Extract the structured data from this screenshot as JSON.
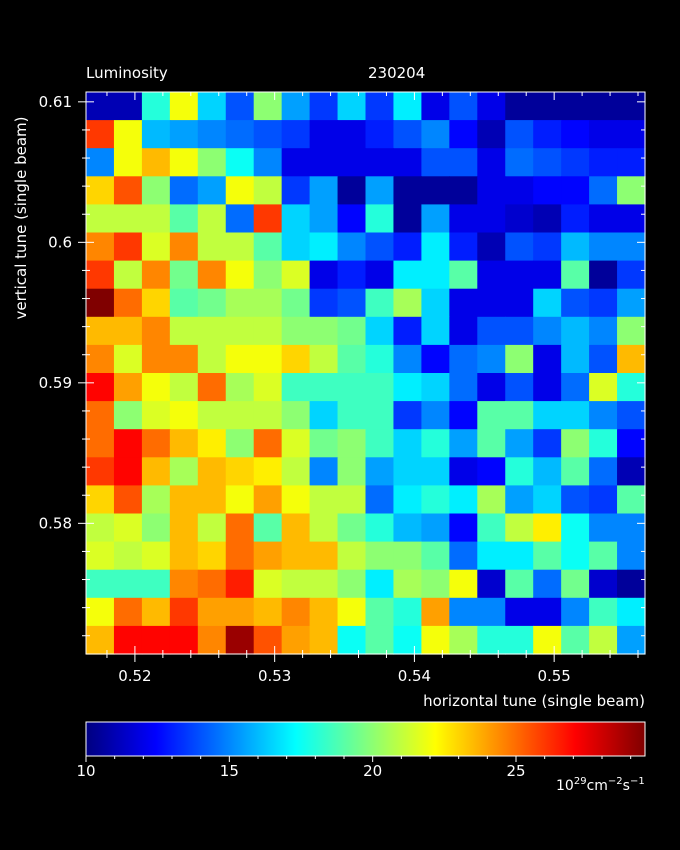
{
  "chart_data": {
    "type": "heatmap",
    "title": "Luminosity",
    "run_id": "230204",
    "xlabel": "horizontal tune (single beam)",
    "ylabel": "vertical tune (single beam)",
    "x_range": [
      0.5165,
      0.5565
    ],
    "y_range": [
      0.5707,
      0.6107
    ],
    "x_ticks": [
      0.52,
      0.53,
      0.54,
      0.55
    ],
    "x_tick_labels": [
      "0.52",
      "0.53",
      "0.54",
      "0.55"
    ],
    "y_ticks": [
      0.58,
      0.59,
      0.6,
      0.61
    ],
    "y_tick_labels": [
      "0.58",
      "0.59",
      "0.6",
      "0.61"
    ],
    "colorbar": {
      "min": 10,
      "max": 29.5,
      "ticks": [
        10,
        15,
        20,
        25
      ],
      "tick_labels": [
        "10",
        "15",
        "20",
        "25"
      ],
      "unit_base": "10",
      "unit_exp": "29",
      "unit_mid": "cm",
      "unit_exp2": "−2",
      "unit_mid2": "s",
      "unit_exp3": "−1"
    },
    "grid_size": [
      20,
      20
    ],
    "z_rows_top_to_bottom": [
      [
        11,
        11,
        18,
        22,
        16.5,
        14,
        20,
        15.5,
        13.5,
        16.5,
        13.5,
        17,
        12,
        14,
        12,
        10.5,
        10.5,
        10.5,
        10.5,
        10.5
      ],
      [
        26,
        22,
        16,
        15.5,
        15,
        14.5,
        14,
        13.5,
        12,
        12,
        13,
        14,
        15,
        12.5,
        11,
        14,
        13,
        12.5,
        12,
        12
      ],
      [
        15,
        22,
        23.5,
        22,
        20,
        17.5,
        15,
        12,
        12,
        12,
        12,
        12,
        14,
        14,
        12,
        14.5,
        14,
        13.5,
        13,
        13
      ],
      [
        23,
        25.5,
        20,
        14.5,
        15.5,
        22,
        21,
        13.5,
        15.5,
        10.5,
        15.5,
        10.5,
        10.5,
        10.5,
        12,
        12,
        12.5,
        12.5,
        14.5,
        20
      ],
      [
        21,
        21,
        21,
        19,
        21,
        14.5,
        26,
        16.5,
        15.5,
        12.5,
        18,
        10.5,
        15.5,
        12,
        12,
        11.5,
        11,
        13,
        12,
        12
      ],
      [
        24.5,
        26,
        21.5,
        24.5,
        21,
        21,
        19,
        16.5,
        17,
        15,
        14,
        13,
        17,
        13,
        11,
        14,
        13.5,
        16,
        15,
        15
      ],
      [
        26,
        21,
        24.5,
        19.5,
        24.5,
        22,
        20,
        21.5,
        12,
        13,
        12,
        17,
        17,
        19,
        12,
        12,
        12,
        19,
        10.5,
        13.5
      ],
      [
        29.5,
        25,
        23,
        19,
        19.5,
        20.5,
        20.5,
        19.5,
        13.5,
        14,
        18.5,
        20.5,
        16.5,
        12,
        12,
        12,
        16.5,
        14,
        13.5,
        15.5
      ],
      [
        23.5,
        23.5,
        24.5,
        21,
        21,
        21,
        21,
        20,
        20,
        19.5,
        16.5,
        13,
        16.5,
        12,
        14,
        14,
        15,
        16,
        15,
        20
      ],
      [
        24.5,
        21.5,
        24.5,
        24.5,
        21,
        22,
        22,
        23,
        21,
        19,
        18,
        15,
        12.5,
        14.5,
        15,
        20,
        12,
        16,
        14,
        23.5
      ],
      [
        27,
        24,
        22,
        21,
        25,
        20.5,
        21.5,
        18.5,
        18.5,
        18.5,
        18.5,
        17,
        16.5,
        14.5,
        12,
        14,
        12,
        14.5,
        21.5,
        18
      ],
      [
        25,
        20,
        21.5,
        22,
        21,
        21,
        21,
        20,
        16.5,
        18.5,
        18.5,
        13.5,
        15,
        12.5,
        19,
        19,
        16.5,
        16.5,
        15,
        14
      ],
      [
        25,
        27,
        25,
        23.5,
        22.5,
        20,
        25,
        21.5,
        19.5,
        20,
        18.5,
        16.5,
        18,
        15.5,
        19,
        15.5,
        13.5,
        20,
        18,
        12.5
      ],
      [
        26,
        27,
        23.5,
        20.5,
        23.5,
        23,
        22.5,
        21,
        15,
        20,
        15.5,
        16.5,
        16.5,
        12,
        12.5,
        18,
        16,
        19,
        14.5,
        11
      ],
      [
        23,
        25.5,
        20.5,
        23.5,
        23.5,
        22,
        24,
        22,
        21,
        21,
        14.5,
        17,
        18,
        17,
        20.5,
        15.5,
        16.5,
        14,
        13.5,
        19
      ],
      [
        21,
        21.5,
        20,
        23.5,
        21,
        25,
        19,
        23.5,
        21,
        19.5,
        18,
        16,
        15.5,
        12.5,
        18.5,
        21,
        22.5,
        17.5,
        15,
        15
      ],
      [
        21.5,
        21,
        21.5,
        23.5,
        23,
        25,
        24,
        23.5,
        23.5,
        21,
        20,
        20,
        19,
        14.5,
        17,
        17,
        19,
        17.5,
        19,
        15
      ],
      [
        18.5,
        18.5,
        18.5,
        24.5,
        25,
        26.5,
        21.5,
        21,
        21,
        20,
        17,
        20.5,
        20,
        22,
        11.5,
        19,
        14.5,
        19.5,
        11.5,
        10.5
      ],
      [
        22,
        25,
        23.5,
        26,
        24,
        24,
        23.5,
        24.5,
        23.5,
        22,
        19,
        18,
        24,
        15,
        15,
        12,
        12,
        15,
        18.5,
        17
      ],
      [
        23.5,
        27,
        27,
        27,
        24.5,
        29,
        25.5,
        24,
        23.5,
        17.5,
        19,
        17.5,
        22,
        20.5,
        18,
        18,
        22,
        19,
        21,
        15.5
      ]
    ]
  }
}
